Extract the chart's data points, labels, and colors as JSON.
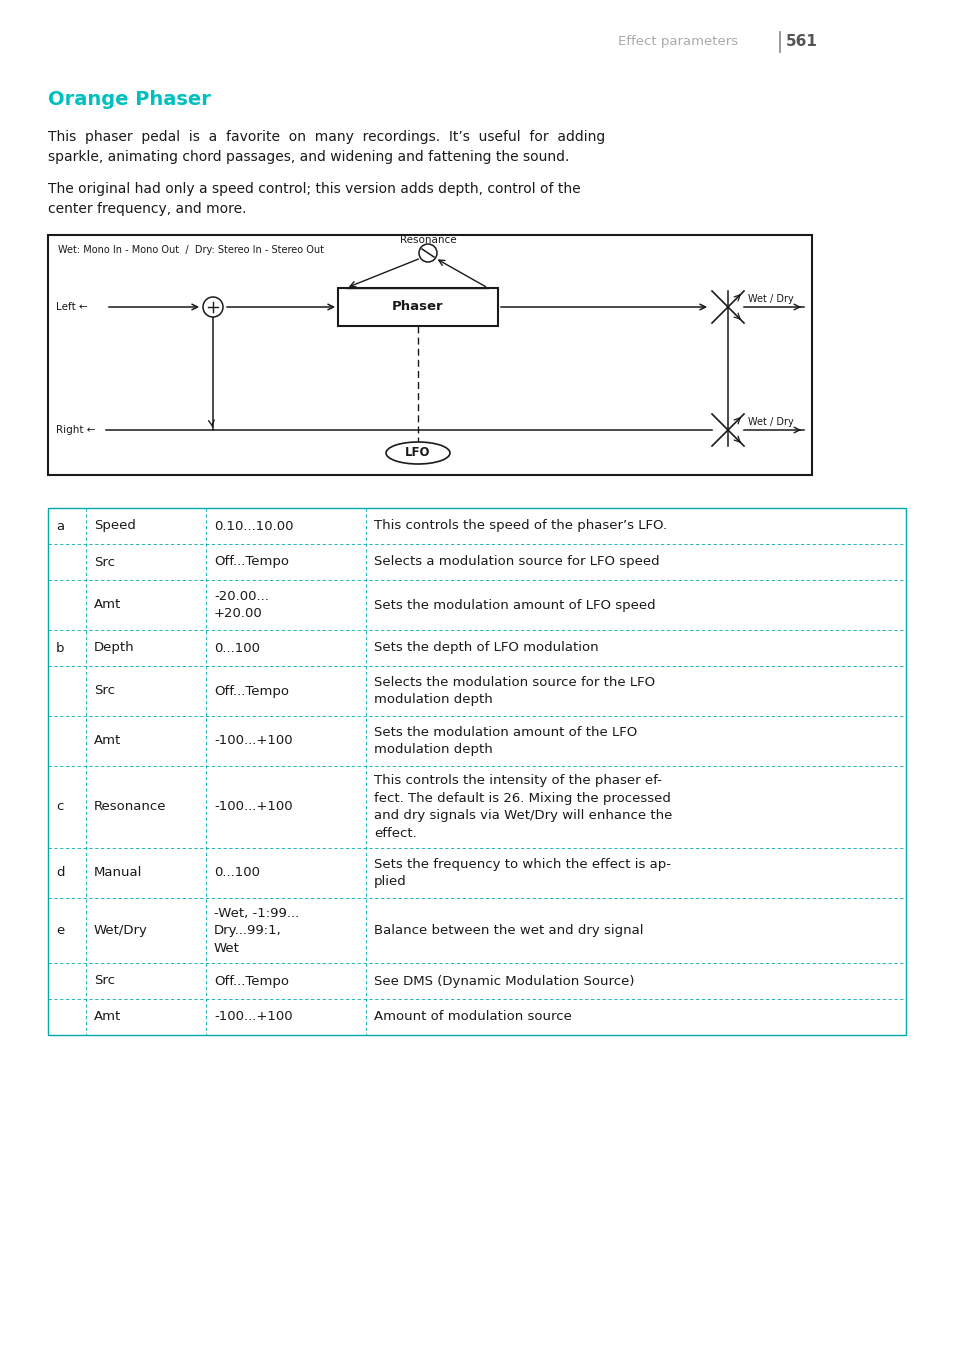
{
  "page_header": "Effect parameters",
  "page_number": "561",
  "title": "Orange Phaser",
  "title_color": "#00BFBF",
  "para1": "This  phaser  pedal  is  a  favorite  on  many  recordings.  It’s  useful  for  adding\nsparkle, animating chord passages, and widening and fattening the sound.",
  "para2": "The original had only a speed control; this version adds depth, control of the\ncenter frequency, and more.",
  "diagram_label": "Wet: Mono In - Mono Out  /  Dry: Stereo In - Stereo Out",
  "table_rows": [
    {
      "col0": "a",
      "col1": "Speed",
      "col2": "0.10...10.00",
      "col3": "This controls the speed of the phaser’s LFO."
    },
    {
      "col0": "",
      "col1": "Src",
      "col2": "Off...Tempo",
      "col3": "Selects a modulation source for LFO speed"
    },
    {
      "col0": "",
      "col1": "Amt",
      "col2": "-20.00...\n+20.00",
      "col3": "Sets the modulation amount of LFO speed"
    },
    {
      "col0": "b",
      "col1": "Depth",
      "col2": "0...100",
      "col3": "Sets the depth of LFO modulation"
    },
    {
      "col0": "",
      "col1": "Src",
      "col2": "Off...Tempo",
      "col3": "Selects the modulation source for the LFO\nmodulation depth"
    },
    {
      "col0": "",
      "col1": "Amt",
      "col2": "-100...+100",
      "col3": "Sets the modulation amount of the LFO\nmodulation depth"
    },
    {
      "col0": "c",
      "col1": "Resonance",
      "col2": "-100...+100",
      "col3": "This controls the intensity of the phaser ef-\nfect. The default is 26. Mixing the processed\nand dry signals via Wet/Dry will enhance the\neffect."
    },
    {
      "col0": "d",
      "col1": "Manual",
      "col2": "0...100",
      "col3": "Sets the frequency to which the effect is ap-\nplied"
    },
    {
      "col0": "e",
      "col1": "Wet/Dry",
      "col2": "-Wet, -1:99...\nDry...99:1,\nWet",
      "col3": "Balance between the wet and dry signal"
    },
    {
      "col0": "",
      "col1": "Src",
      "col2": "Off...Tempo",
      "col3": "See DMS (Dynamic Modulation Source)"
    },
    {
      "col0": "",
      "col1": "Amt",
      "col2": "-100...+100",
      "col3": "Amount of modulation source"
    }
  ],
  "bg_color": "#ffffff",
  "text_color": "#1a1a1a",
  "table_border_color": "#00AAAA",
  "table_line_color": "#00AAAA"
}
